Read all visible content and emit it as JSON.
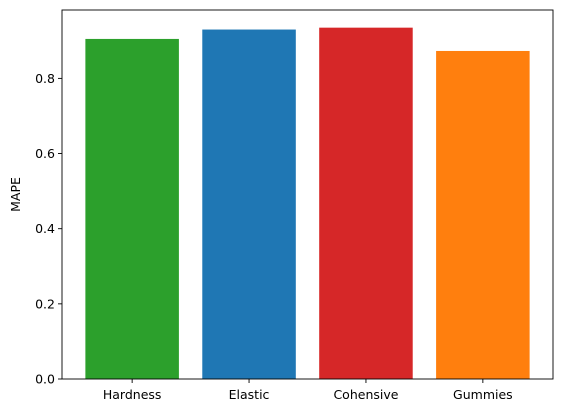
{
  "chart_data": {
    "type": "bar",
    "categories": [
      "Hardness",
      "Elastic",
      "Cohensive",
      "Gummies"
    ],
    "values": [
      0.905,
      0.93,
      0.935,
      0.873
    ],
    "colors": [
      "#2ca02c",
      "#1f77b4",
      "#d62728",
      "#ff7f0e"
    ],
    "title": "",
    "xlabel": "",
    "ylabel": "MAPE",
    "ylim": [
      0,
      0.982
    ],
    "yticks": [
      0.0,
      0.2,
      0.4,
      0.6,
      0.8
    ],
    "ytick_labels": [
      "0.0",
      "0.2",
      "0.4",
      "0.6",
      "0.8"
    ],
    "grid": false,
    "legend": "none"
  }
}
